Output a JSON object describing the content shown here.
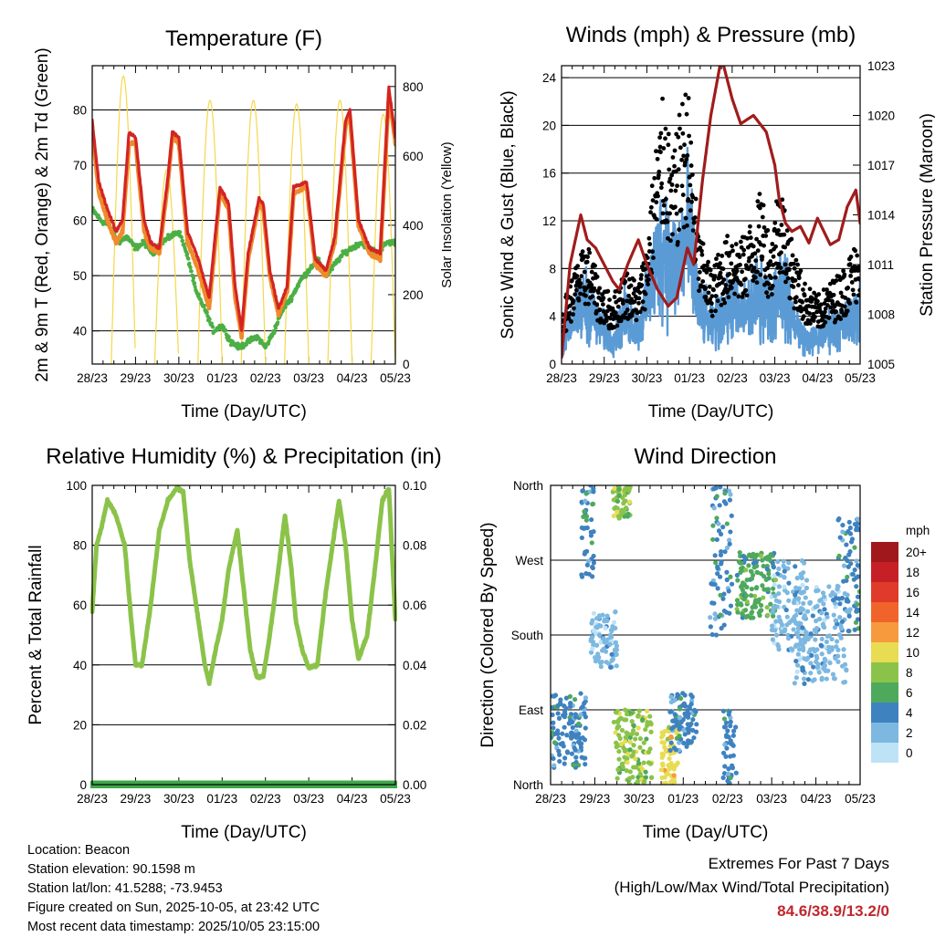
{
  "colors": {
    "temp2m": "#f08a2a",
    "temp9m": "#d32424",
    "dewpoint": "#4caf45",
    "solar": "#f5d84a",
    "wind": "#5b9bd5",
    "gust": "#000000",
    "pressure": "#a01c1c",
    "rh": "#8bc34a",
    "precip": "#3fa74a",
    "extremes": "#c0272d"
  },
  "x_ticks": [
    "28/23",
    "29/23",
    "30/23",
    "01/23",
    "02/23",
    "03/23",
    "04/23",
    "05/23"
  ],
  "x_label": "Time (Day/UTC)",
  "chart_data": [
    {
      "id": "temperature",
      "type": "line",
      "title": "Temperature (F)",
      "xlabel": "Time (Day/UTC)",
      "ylabel": "2m & 9m T (Red, Orange) & 2m Td (Green)",
      "ylabel_right": "Solar Insolation (Yellow)",
      "ylim": [
        34,
        88
      ],
      "yticks": [
        40,
        50,
        60,
        70,
        80
      ],
      "ylim_right": [
        0,
        860
      ],
      "yticks_right": [
        0,
        200,
        400,
        600,
        800
      ],
      "x_unit": "days since 28/23",
      "xlim": [
        0,
        7
      ],
      "series": [
        {
          "name": "9m T",
          "color_key": "temp9m",
          "x": [
            0,
            0.15,
            0.35,
            0.55,
            0.7,
            0.85,
            1.0,
            1.2,
            1.35,
            1.55,
            1.75,
            1.85,
            2.0,
            2.2,
            2.45,
            2.7,
            2.95,
            3.15,
            3.3,
            3.45,
            3.6,
            3.85,
            3.95,
            4.1,
            4.3,
            4.5,
            4.65,
            4.95,
            5.15,
            5.4,
            5.6,
            5.85,
            5.95,
            6.15,
            6.4,
            6.65,
            6.85,
            7.0
          ],
          "values": [
            78,
            67,
            62,
            58,
            60,
            76,
            75,
            60,
            56,
            55,
            68,
            76,
            75,
            58,
            53,
            46,
            66,
            63,
            48,
            40,
            54,
            64,
            63,
            51,
            44,
            48,
            66,
            67,
            53,
            51,
            57,
            78,
            80,
            60,
            55,
            54,
            84,
            75
          ]
        },
        {
          "name": "2m T",
          "color_key": "temp2m",
          "x": [
            0,
            0.15,
            0.35,
            0.55,
            0.7,
            0.85,
            1.0,
            1.2,
            1.35,
            1.55,
            1.75,
            1.85,
            2.0,
            2.2,
            2.45,
            2.7,
            2.95,
            3.15,
            3.3,
            3.45,
            3.6,
            3.85,
            3.95,
            4.1,
            4.3,
            4.5,
            4.65,
            4.95,
            5.15,
            5.4,
            5.6,
            5.85,
            5.95,
            6.15,
            6.4,
            6.65,
            6.85,
            7.0
          ],
          "values": [
            77,
            65,
            60,
            56,
            58,
            74,
            74,
            58,
            55,
            54,
            67,
            75,
            74,
            56,
            51,
            44,
            65,
            62,
            46,
            39,
            53,
            63,
            62,
            50,
            43,
            47,
            65,
            66,
            52,
            50,
            56,
            77,
            79,
            59,
            54,
            53,
            83,
            74
          ]
        },
        {
          "name": "2m Td",
          "color_key": "dewpoint",
          "x": [
            0,
            0.2,
            0.4,
            0.6,
            0.8,
            1.0,
            1.2,
            1.4,
            1.6,
            1.8,
            2.0,
            2.1,
            2.25,
            2.4,
            2.6,
            2.8,
            3.0,
            3.2,
            3.4,
            3.6,
            3.8,
            4.0,
            4.2,
            4.4,
            4.6,
            4.8,
            5.0,
            5.2,
            5.4,
            5.6,
            5.8,
            6.0,
            6.2,
            6.4,
            6.6,
            6.8,
            7.0
          ],
          "values": [
            62,
            60,
            59,
            56,
            57,
            55,
            56,
            54,
            56,
            57,
            58,
            56,
            52,
            47,
            44,
            40,
            41,
            38,
            37,
            38,
            39,
            37,
            40,
            44,
            46,
            49,
            51,
            53,
            50,
            52,
            54,
            55,
            56,
            55,
            54,
            56,
            56
          ]
        },
        {
          "name": "Solar Insolation",
          "color_key": "solar",
          "axis": "right",
          "peaks_x": [
            0.72,
            1.72,
            2.72,
            3.72,
            4.72,
            5.72,
            6.72
          ],
          "peaks_values": [
            830,
            560,
            760,
            760,
            750,
            760,
            720
          ]
        }
      ]
    },
    {
      "id": "winds",
      "type": "scatter",
      "title": "Winds (mph) & Pressure (mb)",
      "xlabel": "Time (Day/UTC)",
      "ylabel": "Sonic Wind & Gust (Blue, Black)",
      "ylabel_right": "Station Pressure (Maroon)",
      "ylim": [
        0,
        25
      ],
      "yticks": [
        0,
        4,
        8,
        12,
        16,
        20,
        24
      ],
      "ylim_right": [
        1005,
        1023
      ],
      "yticks_right": [
        1005,
        1008,
        1011,
        1014,
        1017,
        1020,
        1023
      ],
      "xlim": [
        0,
        7
      ],
      "series": [
        {
          "name": "Gust",
          "color_key": "gust",
          "x": [
            0,
            0.3,
            0.6,
            0.9,
            1.2,
            1.5,
            1.8,
            2.0,
            2.2,
            2.4,
            2.6,
            2.8,
            2.95,
            3.2,
            3.5,
            3.8,
            4.0,
            4.2,
            4.5,
            4.7,
            4.9,
            5.1,
            5.4,
            5.7,
            6.0,
            6.3,
            6.6,
            6.9,
            7.0
          ],
          "values": [
            4,
            7,
            9,
            6,
            5,
            7,
            6,
            9,
            16,
            20,
            15,
            19,
            21,
            10,
            7,
            9,
            10,
            9,
            11,
            13,
            9,
            14,
            9,
            6,
            5,
            6,
            7,
            9,
            10
          ]
        },
        {
          "name": "Wind",
          "color_key": "wind",
          "x": [
            0,
            0.3,
            0.6,
            0.9,
            1.2,
            1.5,
            1.8,
            2.0,
            2.2,
            2.4,
            2.6,
            2.8,
            2.95,
            3.2,
            3.5,
            3.8,
            4.0,
            4.2,
            4.5,
            4.7,
            4.9,
            5.1,
            5.4,
            5.7,
            6.0,
            6.3,
            6.6,
            6.9,
            7.0
          ],
          "values": [
            2,
            4,
            5,
            3,
            2,
            4,
            3,
            5,
            8,
            10,
            8,
            9,
            11,
            5,
            3,
            4,
            5,
            4,
            5,
            6,
            4,
            7,
            4,
            2,
            2,
            3,
            3,
            4,
            5
          ]
        },
        {
          "name": "Station Pressure",
          "color_key": "pressure",
          "axis": "right",
          "x": [
            0,
            0.2,
            0.45,
            0.6,
            0.8,
            1.0,
            1.2,
            1.35,
            1.55,
            1.8,
            2.0,
            2.25,
            2.5,
            2.7,
            2.95,
            3.1,
            3.3,
            3.5,
            3.75,
            4.0,
            4.2,
            4.5,
            4.8,
            5.0,
            5.1,
            5.25,
            5.4,
            5.6,
            5.8,
            6.0,
            6.3,
            6.5,
            6.7,
            6.9,
            7.0
          ],
          "values": [
            1005.4,
            1011,
            1014,
            1012.5,
            1012,
            1011,
            1010,
            1009.5,
            1011,
            1012.5,
            1011,
            1009.5,
            1008.5,
            1009,
            1012,
            1011,
            1016,
            1020,
            1023.5,
            1021,
            1019.5,
            1020,
            1019,
            1017,
            1015,
            1013.5,
            1013,
            1013.3,
            1012.3,
            1013.8,
            1012.2,
            1012.5,
            1014.5,
            1015.5,
            1013.5
          ]
        }
      ]
    },
    {
      "id": "humidity",
      "type": "line",
      "title": "Relative Humidity (%) & Precipitation (in)",
      "xlabel": "Time (Day/UTC)",
      "ylabel": "Percent & Total Rainfall",
      "ylim": [
        0,
        100
      ],
      "yticks": [
        0,
        20,
        40,
        60,
        80,
        100
      ],
      "ylim_right": [
        0,
        0.1
      ],
      "yticks_right": [
        "0.00",
        "0.02",
        "0.04",
        "0.06",
        "0.08",
        "0.10"
      ],
      "xlim": [
        0,
        7
      ],
      "series": [
        {
          "name": "Relative Humidity",
          "color_key": "rh",
          "x": [
            0,
            0.1,
            0.2,
            0.35,
            0.55,
            0.75,
            0.9,
            1.0,
            1.15,
            1.35,
            1.55,
            1.75,
            1.95,
            2.1,
            2.25,
            2.45,
            2.6,
            2.7,
            2.85,
            3.0,
            3.15,
            3.35,
            3.5,
            3.65,
            3.8,
            3.95,
            4.1,
            4.3,
            4.45,
            4.6,
            4.7,
            4.85,
            5.0,
            5.2,
            5.4,
            5.6,
            5.7,
            5.85,
            6.0,
            6.15,
            6.35,
            6.55,
            6.7,
            6.85,
            7.0
          ],
          "values": [
            58,
            80,
            85,
            95,
            90,
            80,
            55,
            40,
            40,
            60,
            85,
            95,
            99,
            98,
            75,
            55,
            40,
            34,
            45,
            55,
            72,
            85,
            65,
            45,
            36,
            36,
            50,
            72,
            90,
            72,
            55,
            45,
            39,
            40,
            65,
            85,
            95,
            80,
            55,
            42,
            50,
            75,
            95,
            99,
            55
          ]
        },
        {
          "name": "Total Precipitation",
          "color_key": "precip",
          "axis": "right",
          "x": [
            0,
            7
          ],
          "values": [
            0,
            0
          ]
        }
      ]
    },
    {
      "id": "direction",
      "type": "scatter",
      "title": "Wind Direction",
      "xlabel": "Time (Day/UTC)",
      "ylabel": "Direction (Colored By Speed)",
      "ylim": [
        0,
        360
      ],
      "yticks": [
        "North",
        "East",
        "South",
        "West",
        "North"
      ],
      "xlim": [
        0,
        7
      ],
      "legend": {
        "title": "mph",
        "labels": [
          "20+",
          "18",
          "16",
          "14",
          "12",
          "10",
          "8",
          "6",
          "4",
          "2",
          "0"
        ],
        "colors": [
          "#a0181c",
          "#c62026",
          "#e03a2b",
          "#f0632a",
          "#f79a3e",
          "#e8dc52",
          "#8bc34a",
          "#4ea95d",
          "#3e82c0",
          "#7db8e0",
          "#bfe3f6"
        ]
      },
      "clusters": [
        {
          "x_range": [
            0.0,
            0.8
          ],
          "dir_range": [
            20,
            110
          ],
          "speed": 4
        },
        {
          "x_range": [
            0.7,
            1.0
          ],
          "dir_range": [
            250,
            360
          ],
          "speed": 4
        },
        {
          "x_range": [
            0.9,
            1.5
          ],
          "dir_range": [
            140,
            210
          ],
          "speed": 2
        },
        {
          "x_range": [
            1.4,
            1.8
          ],
          "dir_range": [
            320,
            360
          ],
          "speed": 8
        },
        {
          "x_range": [
            1.4,
            2.3
          ],
          "dir_range": [
            0,
            90
          ],
          "speed": 8
        },
        {
          "x_range": [
            2.5,
            2.9
          ],
          "dir_range": [
            0,
            70
          ],
          "speed": 10
        },
        {
          "x_range": [
            2.7,
            3.3
          ],
          "dir_range": [
            40,
            110
          ],
          "speed": 4
        },
        {
          "x_range": [
            3.6,
            4.1
          ],
          "dir_range": [
            180,
            360
          ],
          "speed": 4
        },
        {
          "x_range": [
            3.9,
            4.2
          ],
          "dir_range": [
            0,
            90
          ],
          "speed": 4
        },
        {
          "x_range": [
            4.2,
            5.1
          ],
          "dir_range": [
            200,
            280
          ],
          "speed": 6
        },
        {
          "x_range": [
            5.0,
            5.8
          ],
          "dir_range": [
            160,
            270
          ],
          "speed": 2
        },
        {
          "x_range": [
            5.5,
            6.7
          ],
          "dir_range": [
            120,
            240
          ],
          "speed": 2
        },
        {
          "x_range": [
            6.5,
            7.0
          ],
          "dir_range": [
            180,
            320
          ],
          "speed": 4
        }
      ]
    }
  ],
  "info": {
    "location": "Location: Beacon",
    "elevation": "Station elevation: 90.1598 m",
    "latlon": "Station lat/lon: 41.5288; -73.9453",
    "created": "Figure created on Sun, 2025-10-05, at 23:42 UTC",
    "recent": "Most recent data timestamp: 2025/10/05 23:15:00"
  },
  "extremes": {
    "title": "Extremes For Past 7 Days",
    "subtitle": "(High/Low/Max Wind/Total Precipitation)",
    "values": "84.6/38.9/13.2/0"
  }
}
